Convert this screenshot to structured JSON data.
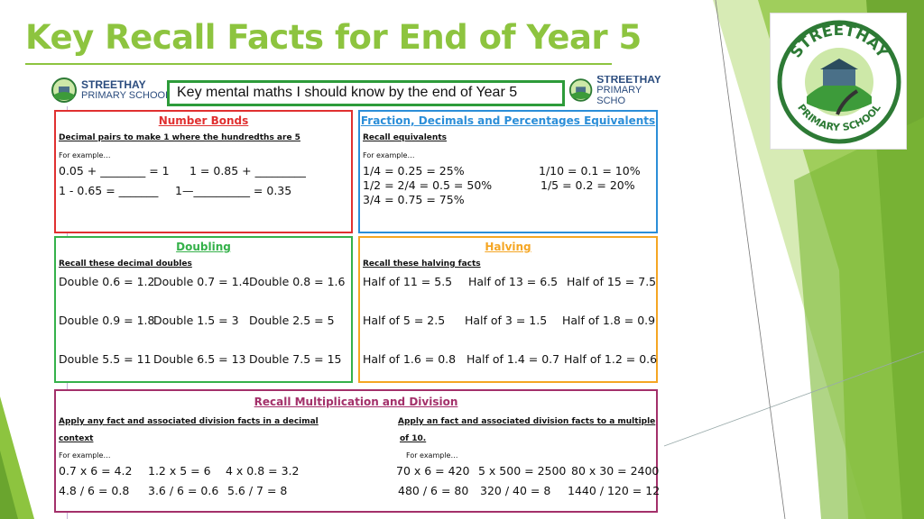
{
  "title": "Key Recall Facts for End of Year 5",
  "colors": {
    "title": "#8dc43f",
    "red": "#e03030",
    "blue": "#2b8ed8",
    "green": "#35b14a",
    "orange": "#f5a623",
    "pink": "#a3306a"
  },
  "logo": {
    "top_text": "STREETHAY",
    "bottom_text": "PRIMARY SCHOOL"
  },
  "mini_logo": {
    "line1": "STREETHAY",
    "line2": "PRIMARY SCHOOL",
    "line2_cut": "PRIMARY SCHO"
  },
  "header": "Key mental maths I should know by the end of Year 5",
  "number_bonds": {
    "title": "Number Bonds",
    "subtitle": "Decimal pairs to make 1 where the hundredths are 5",
    "example": "For example…",
    "eqs": [
      "0.05 + ________ = 1",
      "1 = 0.85 + _________",
      "1 - 0.65 = _______",
      "1—__________ = 0.35"
    ]
  },
  "fdp": {
    "title": "Fraction, Decimals and Percentages Equivalents",
    "subtitle": "Recall equivalents",
    "example": "For example…",
    "eqs": [
      "1/4 = 0.25 = 25%",
      "1/10 = 0.1 = 10%",
      "1/2 = 2/4 = 0.5 = 50%",
      "1/5 = 0.2 = 20%",
      "3/4 = 0.75 = 75%"
    ]
  },
  "doubling": {
    "title": "Doubling",
    "subtitle": "Recall these decimal doubles",
    "eqs": [
      "Double 0.6 = 1.2",
      "Double 0.7 = 1.4",
      "Double 0.8 = 1.6",
      "Double 0.9 = 1.8",
      "Double 1.5 = 3",
      "Double 2.5 = 5",
      "Double 5.5 = 11",
      "Double 6.5 = 13",
      "Double 7.5 = 15"
    ]
  },
  "halving": {
    "title": "Halving",
    "subtitle": "Recall these halving facts",
    "eqs": [
      "Half of 11 = 5.5",
      "Half of 13 = 6.5",
      "Half of 15 = 7.5",
      "Half of 5 = 2.5",
      "Half of 3 = 1.5",
      "Half of 1.8 = 0.9",
      "Half of 1.6 = 0.8",
      "Half of 1.4 = 0.7",
      "Half of 1.2 = 0.6"
    ]
  },
  "multiplication": {
    "title": "Recall Multiplication and Division",
    "left_sub1": "Apply any fact and associated division facts in a decimal",
    "left_sub2": "context",
    "right_sub1": "Apply an fact and associated division facts to a multiple",
    "right_sub2": "of 10.",
    "example": "For example…",
    "left_eqs": [
      "0.7 x 6 = 4.2",
      "1.2 x 5 = 6",
      "4 x 0.8 = 3.2",
      "4.8 / 6 = 0.8",
      "3.6 / 6 = 0.6",
      "5.6 / 7 = 8"
    ],
    "right_eqs": [
      "70 x 6 = 420",
      "5 x 500 = 2500",
      "80 x 30 = 2400",
      "480 / 6 = 80",
      "320 / 40 = 8",
      "1440 / 120 = 12"
    ]
  }
}
